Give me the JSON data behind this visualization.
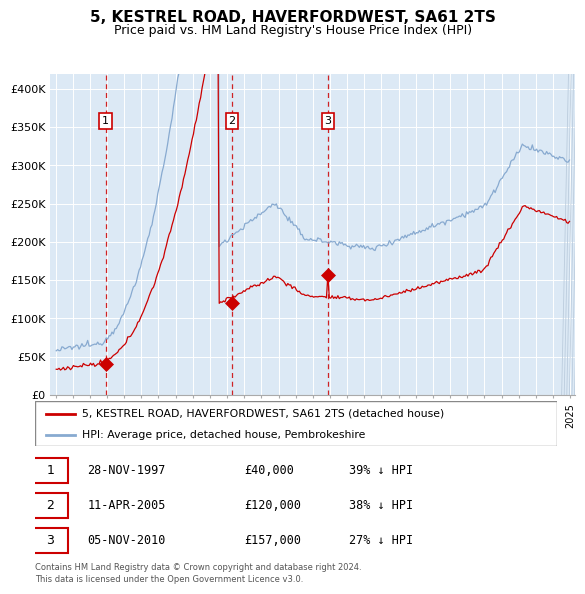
{
  "title": "5, KESTREL ROAD, HAVERFORDWEST, SA61 2TS",
  "subtitle": "Price paid vs. HM Land Registry's House Price Index (HPI)",
  "title_fontsize": 11,
  "subtitle_fontsize": 9,
  "background_color": "#ffffff",
  "plot_bg_color": "#dce9f5",
  "red_line_color": "#cc0000",
  "blue_line_color": "#88aad0",
  "legend_red_label": "5, KESTREL ROAD, HAVERFORDWEST, SA61 2TS (detached house)",
  "legend_blue_label": "HPI: Average price, detached house, Pembrokeshire",
  "sale_years_decimal": [
    1997.9167,
    2005.2917,
    2010.875
  ],
  "sale_prices": [
    40000,
    120000,
    157000
  ],
  "sale_labels": [
    "1",
    "2",
    "3"
  ],
  "sale_info": [
    {
      "label": "1",
      "date": "28-NOV-1997",
      "price": "£40,000",
      "pct": "39% ↓ HPI"
    },
    {
      "label": "2",
      "date": "11-APR-2005",
      "price": "£120,000",
      "pct": "38% ↓ HPI"
    },
    {
      "label": "3",
      "date": "05-NOV-2010",
      "price": "£157,000",
      "pct": "27% ↓ HPI"
    }
  ],
  "footer": "Contains HM Land Registry data © Crown copyright and database right 2024.\nThis data is licensed under the Open Government Licence v3.0.",
  "ylim": [
    0,
    420000
  ],
  "yticks": [
    0,
    50000,
    100000,
    150000,
    200000,
    250000,
    300000,
    350000,
    400000
  ],
  "ytick_labels": [
    "£0",
    "£50K",
    "£100K",
    "£150K",
    "£200K",
    "£250K",
    "£300K",
    "£350K",
    "£400K"
  ],
  "xlim_start": 1994.7,
  "xlim_end": 2025.3,
  "hatch_start": 2024.5
}
